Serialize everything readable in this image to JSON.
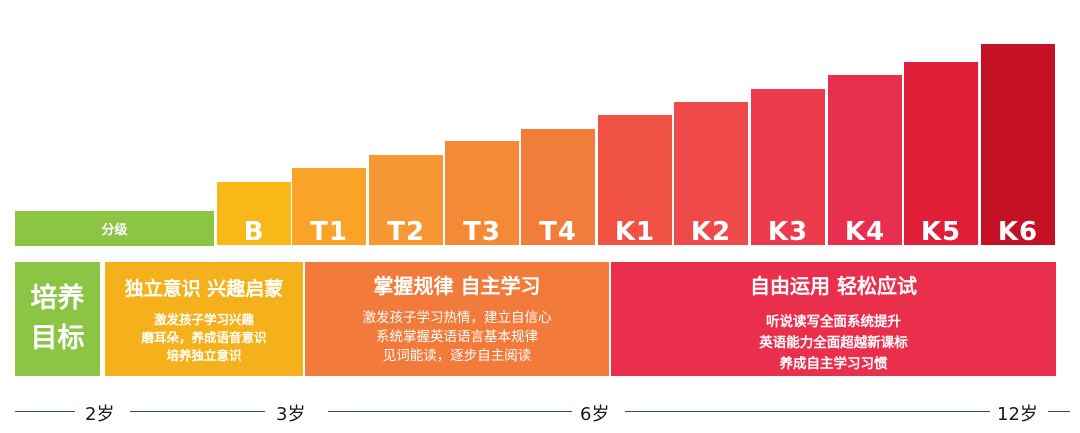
{
  "levels": [
    {
      "label": "B",
      "color": "#f8b818"
    },
    {
      "label": "T1",
      "color": "#f9a429"
    },
    {
      "label": "T2",
      "color": "#f89834"
    },
    {
      "label": "T3",
      "color": "#f48a36"
    },
    {
      "label": "T4",
      "color": "#f27d3a"
    },
    {
      "label": "K1",
      "color": "#f05343"
    },
    {
      "label": "K2",
      "color": "#ef4949"
    },
    {
      "label": "K3",
      "color": "#ec3b4d"
    },
    {
      "label": "K4",
      "color": "#e82f4f"
    },
    {
      "label": "K5",
      "color": "#e01e38"
    },
    {
      "label": "K6",
      "color": "#c51125"
    }
  ],
  "grading_label": "分级",
  "goal_label": {
    "line1": "培养",
    "line2": "目标"
  },
  "stages": [
    {
      "title": "独立意识 兴趣启蒙",
      "lines": [
        "激发孩子学习兴趣",
        "磨耳朵，养成语音意识",
        "培养独立意识"
      ]
    },
    {
      "title": "掌握规律 自主学习",
      "lines": [
        "激发孩子学习热情，建立自信心",
        "系统掌握英语语言基本规律",
        "见词能读，逐步自主阅读"
      ]
    },
    {
      "title": "自由运用 轻松应试",
      "lines": [
        "听说读写全面系统提升",
        "英语能力全面超越新课标",
        "养成自主学习习惯"
      ]
    }
  ],
  "ages": [
    "2岁",
    "3岁",
    "6岁",
    "12岁"
  ],
  "colors": {
    "green": "#8cc444",
    "line": "#2d4a7c"
  }
}
